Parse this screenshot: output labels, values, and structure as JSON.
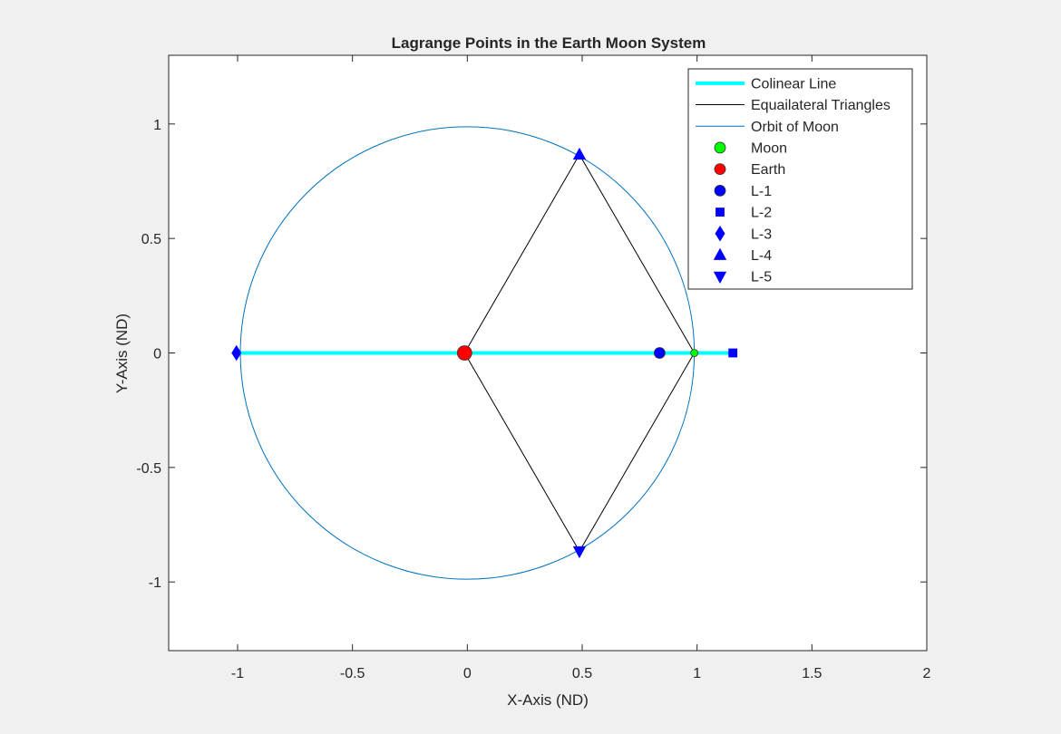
{
  "chart_data": {
    "type": "scatter",
    "title": "Lagrange Points in the Earth Moon System",
    "xlabel": "X-Axis (ND)",
    "ylabel": "Y-Axis (ND)",
    "xlim": [
      -1.3,
      2
    ],
    "ylim": [
      -1.3,
      1.3
    ],
    "x_ticks": [
      -1,
      -0.5,
      0,
      0.5,
      1,
      1.5,
      2
    ],
    "x_tick_labels": [
      "-1",
      "-0.5",
      "0",
      "0.5",
      "1",
      "1.5",
      "2"
    ],
    "y_ticks": [
      -1,
      -0.5,
      0,
      0.5,
      1
    ],
    "y_tick_labels": [
      "-1",
      "-0.5",
      "0",
      "0.5",
      "1"
    ],
    "grid": false,
    "legend_position": "top-right",
    "lines": [
      {
        "name": "Colinear Line",
        "color": "#00ffff",
        "width": "thick",
        "x": [
          -1.005,
          1.156
        ],
        "y": [
          0,
          0
        ]
      },
      {
        "name": "Equailateral Triangles",
        "color": "#000000",
        "width": "thin",
        "x": [
          -0.012,
          0.488,
          0.988,
          0.488,
          -0.012,
          0.988
        ],
        "y": [
          0,
          0.866,
          0,
          -0.866,
          0,
          0
        ]
      },
      {
        "name": "Orbit of Moon",
        "color": "#0072bd",
        "width": "thin",
        "type": "circle",
        "center": [
          0,
          0
        ],
        "radius": 0.988
      }
    ],
    "points": [
      {
        "name": "Moon",
        "x": 0.988,
        "y": 0,
        "marker": "circle",
        "size": "small",
        "color": "#00ff00"
      },
      {
        "name": "Earth",
        "x": -0.012,
        "y": 0,
        "marker": "circle",
        "size": "large",
        "color": "#ff0000"
      },
      {
        "name": "L-1",
        "x": 0.837,
        "y": 0,
        "marker": "circle",
        "color": "#0000ff"
      },
      {
        "name": "L-2",
        "x": 1.156,
        "y": 0,
        "marker": "square",
        "color": "#0000ff"
      },
      {
        "name": "L-3",
        "x": -1.005,
        "y": 0,
        "marker": "diamond",
        "color": "#0000ff"
      },
      {
        "name": "L-4",
        "x": 0.488,
        "y": 0.866,
        "marker": "triangle-up",
        "color": "#0000ff"
      },
      {
        "name": "L-5",
        "x": 0.488,
        "y": -0.866,
        "marker": "triangle-down",
        "color": "#0000ff"
      }
    ]
  }
}
